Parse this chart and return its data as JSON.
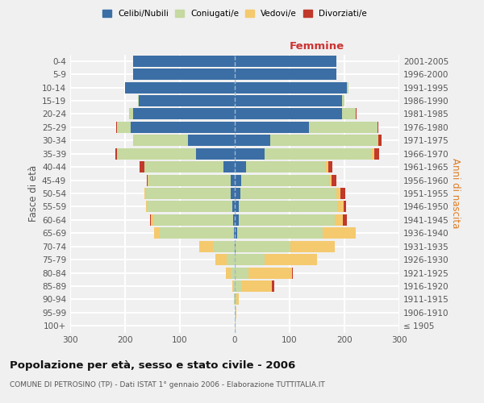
{
  "age_groups": [
    "100+",
    "95-99",
    "90-94",
    "85-89",
    "80-84",
    "75-79",
    "70-74",
    "65-69",
    "60-64",
    "55-59",
    "50-54",
    "45-49",
    "40-44",
    "35-39",
    "30-34",
    "25-29",
    "20-24",
    "15-19",
    "10-14",
    "5-9",
    "0-4"
  ],
  "birth_years": [
    "≤ 1905",
    "1906-1910",
    "1911-1915",
    "1916-1920",
    "1921-1925",
    "1926-1930",
    "1931-1935",
    "1936-1940",
    "1941-1945",
    "1946-1950",
    "1951-1955",
    "1956-1960",
    "1961-1965",
    "1966-1970",
    "1971-1975",
    "1976-1980",
    "1981-1985",
    "1986-1990",
    "1991-1995",
    "1996-2000",
    "2001-2005"
  ],
  "colors": {
    "celibe": "#3b6ea5",
    "coniugato": "#c5d9a0",
    "vedovo": "#f5c96e",
    "divorziato": "#c0392b"
  },
  "male": {
    "celibe": [
      0,
      0,
      0,
      0,
      0,
      0,
      0,
      2,
      3,
      5,
      7,
      8,
      20,
      70,
      85,
      190,
      185,
      175,
      200,
      185,
      185
    ],
    "coniugato": [
      0,
      0,
      1,
      3,
      8,
      15,
      40,
      135,
      145,
      155,
      155,
      150,
      145,
      145,
      100,
      25,
      8,
      2,
      0,
      0,
      0
    ],
    "vedovo": [
      0,
      0,
      0,
      2,
      8,
      20,
      25,
      10,
      5,
      2,
      2,
      1,
      0,
      0,
      0,
      0,
      0,
      0,
      0,
      0,
      0
    ],
    "divorziato": [
      0,
      0,
      0,
      0,
      0,
      0,
      0,
      0,
      2,
      0,
      0,
      1,
      8,
      2,
      1,
      1,
      0,
      0,
      0,
      0,
      0
    ]
  },
  "female": {
    "nubile": [
      0,
      0,
      0,
      0,
      0,
      0,
      2,
      5,
      7,
      8,
      10,
      12,
      20,
      55,
      65,
      135,
      195,
      195,
      205,
      185,
      185
    ],
    "coniugata": [
      0,
      1,
      3,
      12,
      25,
      55,
      100,
      155,
      175,
      180,
      175,
      160,
      145,
      195,
      195,
      125,
      25,
      5,
      2,
      0,
      0
    ],
    "vedova": [
      1,
      2,
      5,
      55,
      80,
      95,
      80,
      60,
      15,
      10,
      8,
      5,
      5,
      5,
      2,
      0,
      0,
      0,
      0,
      0,
      0
    ],
    "divorziata": [
      0,
      0,
      0,
      5,
      1,
      0,
      0,
      0,
      8,
      5,
      8,
      8,
      8,
      8,
      5,
      2,
      2,
      0,
      0,
      0,
      0
    ]
  },
  "xlim": 300,
  "title": "Popolazione per età, sesso e stato civile - 2006",
  "subtitle": "COMUNE DI PETROSINO (TP) - Dati ISTAT 1° gennaio 2006 - Elaborazione TUTTITALIA.IT",
  "ylabel_left": "Fasce di età",
  "ylabel_right": "Anni di nascita",
  "label_femmine": "Femmine",
  "legend_labels": [
    "Celibi/Nubili",
    "Coniugati/e",
    "Vedovi/e",
    "Divorziati/e"
  ],
  "bg_color": "#f0f0f0",
  "grid_color": "#ffffff"
}
